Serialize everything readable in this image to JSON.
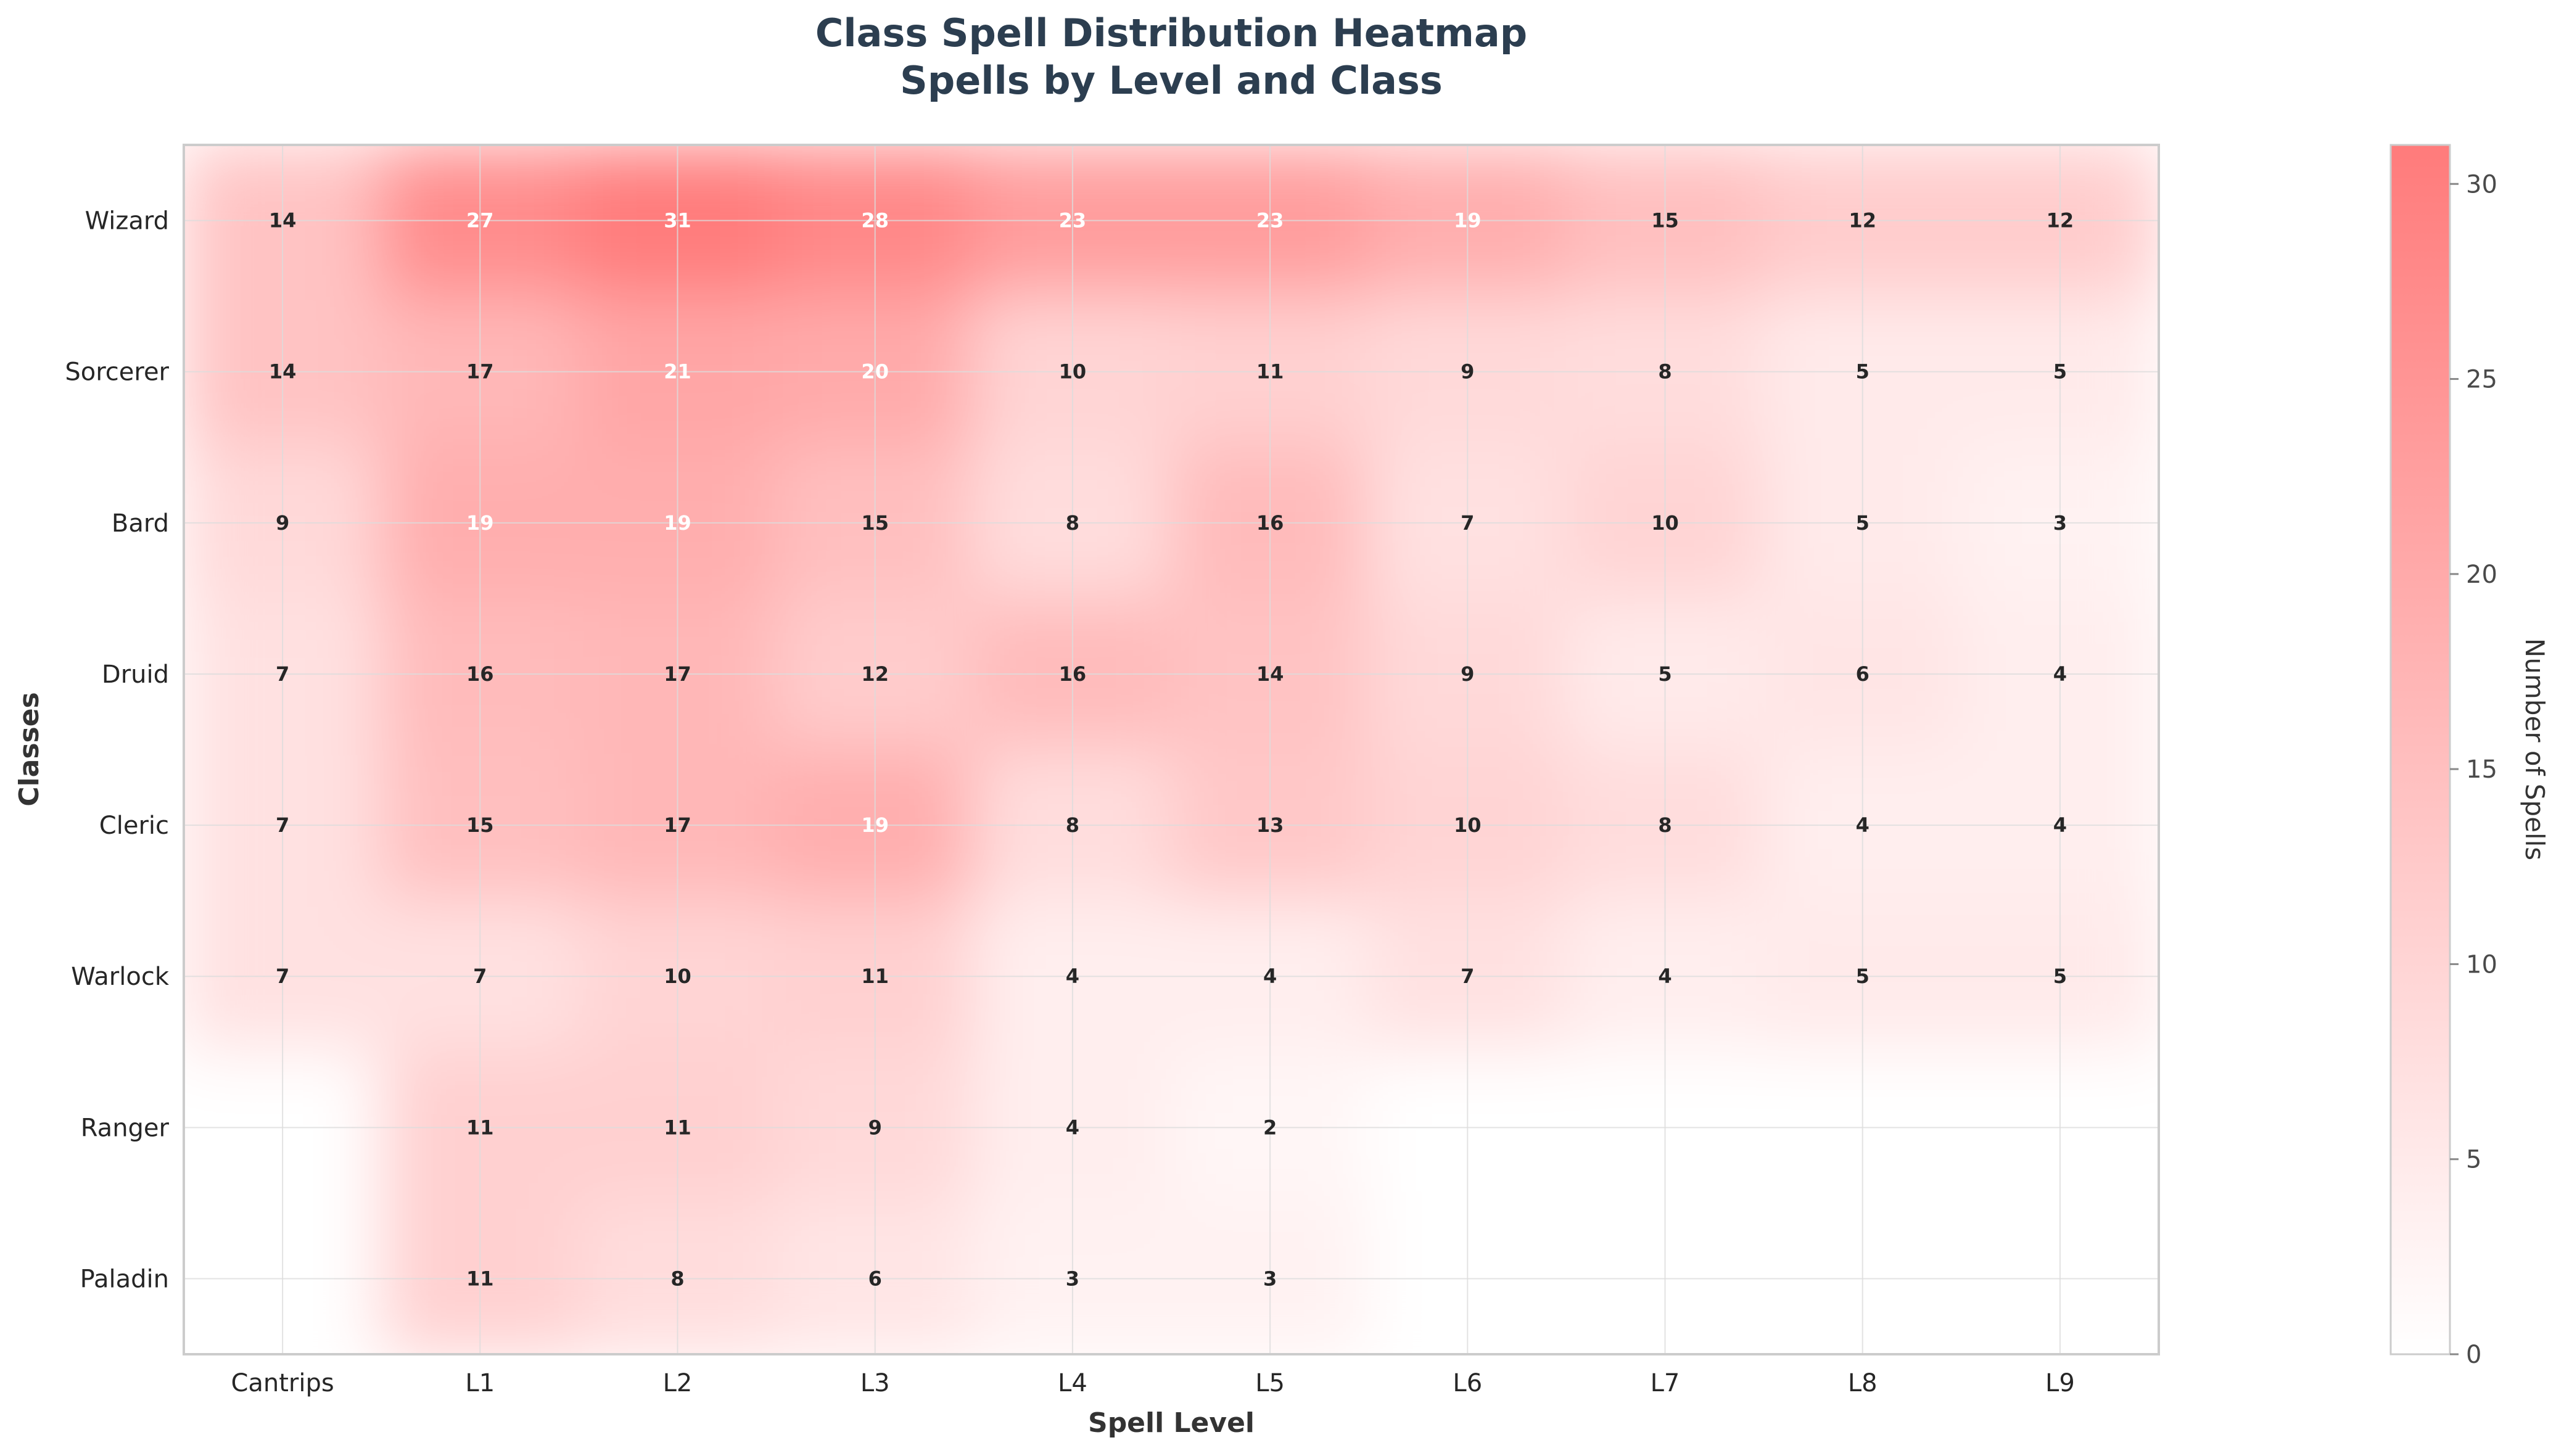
{
  "chart_data": {
    "type": "heatmap",
    "title_lines": [
      "Class Spell Distribution Heatmap",
      "Spells by Level and Class"
    ],
    "xlabel": "Spell Level",
    "ylabel": "Classes",
    "x_categories": [
      "Cantrips",
      "L1",
      "L2",
      "L3",
      "L4",
      "L5",
      "L6",
      "L7",
      "L8",
      "L9"
    ],
    "y_categories": [
      "Wizard",
      "Sorcerer",
      "Bard",
      "Druid",
      "Cleric",
      "Warlock",
      "Ranger",
      "Paladin"
    ],
    "values": [
      [
        14,
        27,
        31,
        28,
        23,
        23,
        19,
        15,
        12,
        12
      ],
      [
        14,
        17,
        21,
        20,
        10,
        11,
        9,
        8,
        5,
        5
      ],
      [
        9,
        19,
        19,
        15,
        8,
        16,
        7,
        10,
        5,
        3
      ],
      [
        7,
        16,
        17,
        12,
        16,
        14,
        9,
        5,
        6,
        4
      ],
      [
        7,
        15,
        17,
        19,
        8,
        13,
        10,
        8,
        4,
        4
      ],
      [
        7,
        7,
        10,
        11,
        4,
        4,
        7,
        4,
        5,
        5
      ],
      [
        0,
        11,
        11,
        9,
        4,
        2,
        0,
        0,
        0,
        0
      ],
      [
        0,
        11,
        8,
        6,
        3,
        3,
        0,
        0,
        0,
        0
      ]
    ],
    "colorbar": {
      "label": "Number of Spells",
      "min": 0,
      "max": 31,
      "ticks": [
        0,
        5,
        10,
        15,
        20,
        25,
        30
      ],
      "color_low": "#ffffff",
      "color_high": "#ff7b7b"
    },
    "grid": true
  }
}
